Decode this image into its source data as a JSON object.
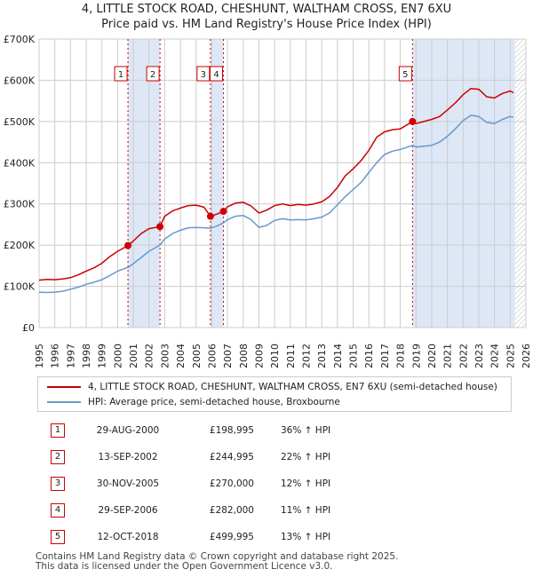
{
  "header": {
    "title": "4, LITTLE STOCK ROAD, CHESHUNT, WALTHAM CROSS, EN7 6XU",
    "subtitle": "Price paid vs. HM Land Registry's House Price Index (HPI)"
  },
  "colors": {
    "property": "#cc0000",
    "hpi": "#6699cc",
    "shade": "#dde7f6",
    "grid": "#cccccc"
  },
  "chart_data": {
    "type": "line",
    "title": "4, LITTLE STOCK ROAD, CHESHUNT, WALTHAM CROSS, EN7 6XU",
    "subtitle": "Price paid vs. HM Land Registry's House Price Index (HPI)",
    "xlim": [
      1995,
      2026
    ],
    "ylim": [
      0,
      700000
    ],
    "x_ticks": [
      "1995",
      "1996",
      "1997",
      "1998",
      "1999",
      "2000",
      "2001",
      "2002",
      "2003",
      "2004",
      "2005",
      "2006",
      "2007",
      "2008",
      "2009",
      "2010",
      "2011",
      "2012",
      "2013",
      "2014",
      "2015",
      "2016",
      "2017",
      "2018",
      "2019",
      "2020",
      "2021",
      "2022",
      "2023",
      "2024",
      "2025",
      "2026"
    ],
    "y_ticks": [
      {
        "value": 0,
        "label": "£0"
      },
      {
        "value": 100000,
        "label": "£100K"
      },
      {
        "value": 200000,
        "label": "£200K"
      },
      {
        "value": 300000,
        "label": "£300K"
      },
      {
        "value": 400000,
        "label": "£400K"
      },
      {
        "value": 500000,
        "label": "£500K"
      },
      {
        "value": 600000,
        "label": "£600K"
      },
      {
        "value": 700000,
        "label": "£700K"
      }
    ],
    "grid": true,
    "shaded_ranges": [
      [
        2000.66,
        2002.7
      ],
      [
        2005.91,
        2006.74
      ],
      [
        2018.78,
        2025.3
      ]
    ],
    "hatched_from": 2025.3,
    "series": [
      {
        "name": "4, LITTLE STOCK ROAD, CHESHUNT, WALTHAM CROSS, EN7 6XU (semi-detached house)",
        "color": "#cc0000",
        "points": [
          [
            1995.0,
            115000
          ],
          [
            1995.5,
            117000
          ],
          [
            1996.0,
            116000
          ],
          [
            1996.5,
            118000
          ],
          [
            1997.0,
            121000
          ],
          [
            1997.5,
            128000
          ],
          [
            1998.0,
            137000
          ],
          [
            1998.5,
            145000
          ],
          [
            1999.0,
            156000
          ],
          [
            1999.5,
            172000
          ],
          [
            2000.0,
            185000
          ],
          [
            2000.66,
            198995
          ],
          [
            2001.0,
            210000
          ],
          [
            2001.5,
            228000
          ],
          [
            2002.0,
            240000
          ],
          [
            2002.7,
            244995
          ],
          [
            2003.0,
            270000
          ],
          [
            2003.5,
            283000
          ],
          [
            2004.0,
            290000
          ],
          [
            2004.5,
            296000
          ],
          [
            2005.0,
            297000
          ],
          [
            2005.5,
            292000
          ],
          [
            2005.91,
            270000
          ],
          [
            2006.3,
            275000
          ],
          [
            2006.74,
            282000
          ],
          [
            2007.0,
            293000
          ],
          [
            2007.5,
            302000
          ],
          [
            2008.0,
            304000
          ],
          [
            2008.5,
            295000
          ],
          [
            2009.0,
            278000
          ],
          [
            2009.5,
            285000
          ],
          [
            2010.0,
            296000
          ],
          [
            2010.5,
            300000
          ],
          [
            2011.0,
            296000
          ],
          [
            2011.5,
            299000
          ],
          [
            2012.0,
            297000
          ],
          [
            2012.5,
            300000
          ],
          [
            2013.0,
            305000
          ],
          [
            2013.5,
            318000
          ],
          [
            2014.0,
            340000
          ],
          [
            2014.5,
            368000
          ],
          [
            2015.0,
            385000
          ],
          [
            2015.5,
            405000
          ],
          [
            2016.0,
            430000
          ],
          [
            2016.5,
            462000
          ],
          [
            2017.0,
            475000
          ],
          [
            2017.5,
            480000
          ],
          [
            2018.0,
            482000
          ],
          [
            2018.78,
            499995
          ],
          [
            2019.0,
            495000
          ],
          [
            2019.5,
            500000
          ],
          [
            2020.0,
            505000
          ],
          [
            2020.5,
            512000
          ],
          [
            2021.0,
            528000
          ],
          [
            2021.5,
            545000
          ],
          [
            2022.0,
            565000
          ],
          [
            2022.5,
            580000
          ],
          [
            2023.0,
            578000
          ],
          [
            2023.5,
            560000
          ],
          [
            2024.0,
            557000
          ],
          [
            2024.5,
            568000
          ],
          [
            2025.0,
            574000
          ],
          [
            2025.2,
            570000
          ]
        ]
      },
      {
        "name": "HPI: Average price, semi-detached house, Broxbourne",
        "color": "#6699cc",
        "points": [
          [
            1995.0,
            86000
          ],
          [
            1995.5,
            85000
          ],
          [
            1996.0,
            86000
          ],
          [
            1996.5,
            88000
          ],
          [
            1997.0,
            93000
          ],
          [
            1997.5,
            98000
          ],
          [
            1998.0,
            105000
          ],
          [
            1998.5,
            110000
          ],
          [
            1999.0,
            116000
          ],
          [
            1999.5,
            126000
          ],
          [
            2000.0,
            137000
          ],
          [
            2000.66,
            146000
          ],
          [
            2001.0,
            155000
          ],
          [
            2001.5,
            170000
          ],
          [
            2002.0,
            185000
          ],
          [
            2002.7,
            200000
          ],
          [
            2003.0,
            215000
          ],
          [
            2003.5,
            228000
          ],
          [
            2004.0,
            236000
          ],
          [
            2004.5,
            242000
          ],
          [
            2005.0,
            243000
          ],
          [
            2005.5,
            242000
          ],
          [
            2005.91,
            241000
          ],
          [
            2006.3,
            246000
          ],
          [
            2006.74,
            254000
          ],
          [
            2007.0,
            262000
          ],
          [
            2007.5,
            270000
          ],
          [
            2008.0,
            272000
          ],
          [
            2008.5,
            262000
          ],
          [
            2009.0,
            243000
          ],
          [
            2009.5,
            248000
          ],
          [
            2010.0,
            260000
          ],
          [
            2010.5,
            264000
          ],
          [
            2011.0,
            261000
          ],
          [
            2011.5,
            262000
          ],
          [
            2012.0,
            261000
          ],
          [
            2012.5,
            264000
          ],
          [
            2013.0,
            268000
          ],
          [
            2013.5,
            278000
          ],
          [
            2014.0,
            298000
          ],
          [
            2014.5,
            318000
          ],
          [
            2015.0,
            335000
          ],
          [
            2015.5,
            352000
          ],
          [
            2016.0,
            376000
          ],
          [
            2016.5,
            400000
          ],
          [
            2017.0,
            420000
          ],
          [
            2017.5,
            428000
          ],
          [
            2018.0,
            432000
          ],
          [
            2018.78,
            442000
          ],
          [
            2019.0,
            438000
          ],
          [
            2019.5,
            440000
          ],
          [
            2020.0,
            442000
          ],
          [
            2020.5,
            450000
          ],
          [
            2021.0,
            464000
          ],
          [
            2021.5,
            482000
          ],
          [
            2022.0,
            502000
          ],
          [
            2022.5,
            515000
          ],
          [
            2023.0,
            512000
          ],
          [
            2023.5,
            498000
          ],
          [
            2024.0,
            495000
          ],
          [
            2024.5,
            505000
          ],
          [
            2025.0,
            512000
          ],
          [
            2025.2,
            510000
          ]
        ]
      }
    ],
    "sales": [
      {
        "n": "1",
        "x": 2000.66,
        "price": 198995
      },
      {
        "n": "2",
        "x": 2002.7,
        "price": 244995
      },
      {
        "n": "3",
        "x": 2005.91,
        "price": 270000
      },
      {
        "n": "4",
        "x": 2006.74,
        "price": 282000
      },
      {
        "n": "5",
        "x": 2018.78,
        "price": 499995
      }
    ]
  },
  "legend": {
    "property_label": "4, LITTLE STOCK ROAD, CHESHUNT, WALTHAM CROSS, EN7 6XU (semi-detached house)",
    "hpi_label": "HPI: Average price, semi-detached house, Broxbourne"
  },
  "transactions": [
    {
      "n": "1",
      "date": "29-AUG-2000",
      "price": "£198,995",
      "hpi": "36% ↑ HPI"
    },
    {
      "n": "2",
      "date": "13-SEP-2002",
      "price": "£244,995",
      "hpi": "22% ↑ HPI"
    },
    {
      "n": "3",
      "date": "30-NOV-2005",
      "price": "£270,000",
      "hpi": "12% ↑ HPI"
    },
    {
      "n": "4",
      "date": "29-SEP-2006",
      "price": "£282,000",
      "hpi": "11% ↑ HPI"
    },
    {
      "n": "5",
      "date": "12-OCT-2018",
      "price": "£499,995",
      "hpi": "13% ↑ HPI"
    }
  ],
  "footer": {
    "line1": "Contains HM Land Registry data © Crown copyright and database right 2025.",
    "line2": "This data is licensed under the Open Government Licence v3.0."
  }
}
